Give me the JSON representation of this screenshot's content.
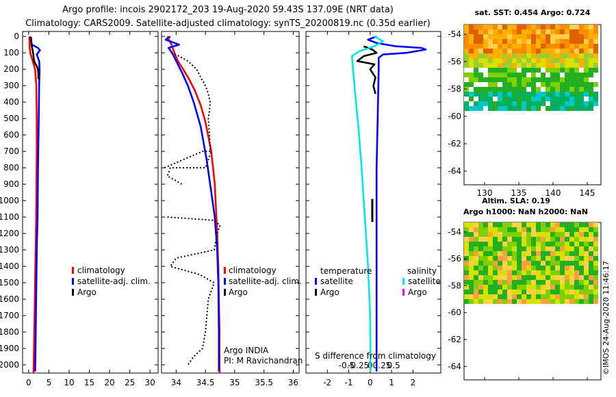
{
  "chart_data": {
    "type": "line",
    "title_line1": "Argo profile: incois 2902172_203 19-Aug-2020 59.43S 137.09E (NRT data)",
    "title_line2": "Climatology: CARS2009. Satellite-adjusted climatology: synTS_20200819.nc (0.35d earlier)",
    "depth_ticks": [
      0,
      100,
      200,
      300,
      400,
      500,
      600,
      700,
      800,
      900,
      1000,
      1100,
      1200,
      1300,
      1400,
      1500,
      1600,
      1700,
      1800,
      1900,
      2000
    ],
    "panel_temperature": {
      "xlabel": "",
      "xlim": [
        -1.5,
        32
      ],
      "xticks": [
        0,
        5,
        10,
        15,
        20,
        25,
        30
      ],
      "ylim": [
        2050,
        -30
      ],
      "series": [
        {
          "name": "climatology",
          "color": "#ff0000",
          "x": [
            0.2,
            0.2,
            0.4,
            1.0,
            1.6,
            1.9,
            2.0,
            2.0,
            1.9,
            1.8,
            1.6,
            1.4,
            1.2
          ],
          "y": [
            0,
            50,
            100,
            150,
            200,
            300,
            500,
            700,
            1000,
            1200,
            1500,
            1800,
            2050
          ]
        },
        {
          "name": "satellite-adj. clim.",
          "color": "#0000ff",
          "x": [
            0.4,
            0.8,
            2.3,
            2.8,
            2.0,
            2.6,
            2.7,
            2.6,
            2.5,
            2.3,
            2.2,
            2.0,
            1.9,
            1.8,
            1.7,
            1.6
          ],
          "y": [
            0,
            50,
            70,
            85,
            110,
            150,
            200,
            300,
            500,
            800,
            1100,
            1300,
            1500,
            1700,
            1900,
            2040
          ]
        },
        {
          "name": "Argo",
          "color": "#000000",
          "x": [
            0.6,
            0.7,
            1.1,
            1.3,
            1.5,
            2.0,
            2.3,
            2.4,
            2.4
          ],
          "y": [
            5,
            50,
            100,
            140,
            160,
            180,
            200,
            230,
            260
          ]
        }
      ],
      "legend": [
        "climatology",
        "satellite-adj. clim.",
        "Argo"
      ]
    },
    "panel_salinity": {
      "xlabel": "",
      "xlim": [
        33.75,
        36.1
      ],
      "xticks": [
        34,
        34.5,
        35,
        35.5,
        36
      ],
      "xtick_labels": [
        "34",
        "34.5",
        "35",
        "35.5",
        "36"
      ],
      "ylim": [
        2050,
        -30
      ],
      "series": [
        {
          "name": "climatology",
          "color": "#ff0000",
          "x": [
            33.85,
            33.92,
            33.97,
            34.03,
            34.12,
            34.22,
            34.32,
            34.42,
            34.5,
            34.6,
            34.66,
            34.7,
            34.72,
            34.73,
            34.74,
            34.74
          ],
          "y": [
            0,
            50,
            100,
            150,
            200,
            260,
            330,
            420,
            520,
            700,
            900,
            1200,
            1400,
            1600,
            1800,
            2050
          ]
        },
        {
          "name": "satellite-adj. clim.",
          "color": "#0000ff",
          "x": [
            33.9,
            33.82,
            34.05,
            33.87,
            33.93,
            34.0,
            34.1,
            34.2,
            34.3,
            34.42,
            34.52,
            34.6,
            34.66,
            34.7,
            34.72,
            34.73,
            34.73
          ],
          "y": [
            0,
            20,
            50,
            70,
            100,
            150,
            220,
            300,
            400,
            550,
            750,
            950,
            1100,
            1300,
            1500,
            1800,
            2040
          ]
        },
        {
          "name": "Argo",
          "color": "#000000",
          "x": [
            33.92,
            34.05,
            34.2,
            34.35,
            34.42,
            34.5,
            34.55,
            34.58,
            34.57,
            34.55,
            34.57,
            34.58
          ],
          "y": [
            100,
            120,
            150,
            200,
            250,
            300,
            350,
            400,
            450,
            500,
            600,
            700
          ]
        }
      ],
      "legend": [
        "climatology",
        "satellite-adj. clim.",
        "Argo"
      ],
      "annotation_line1": "Argo INDIA",
      "annotation_line2": "PI: M Ravichandran"
    },
    "panel_difference": {
      "xlabel": "S difference from climatology",
      "xlim": [
        -3,
        3.3
      ],
      "xticks": [
        -2,
        -1,
        0,
        1,
        2
      ],
      "xtick_labels": [
        "-2",
        "-1",
        "0",
        "1",
        "2"
      ],
      "salinity_ticks": [
        -0.5,
        -0.25,
        0,
        0.25,
        0.5
      ],
      "salinity_tick_labels": [
        "-0.5",
        "-0.25",
        "0",
        "0.25",
        "0.5"
      ],
      "ylim": [
        2050,
        -30
      ],
      "series": [
        {
          "name": "temperature satellite",
          "color": "#0000ff",
          "x": [
            0.3,
            -0.1,
            0.3,
            1.2,
            2.4,
            2.6,
            1.7,
            0.6,
            0.4,
            0.4,
            0.35,
            0.3,
            0.3,
            0.3,
            0.3,
            0.3
          ],
          "y": [
            0,
            20,
            40,
            60,
            70,
            80,
            100,
            110,
            130,
            200,
            500,
            800,
            1100,
            1400,
            1700,
            2040
          ]
        },
        {
          "name": "temperature Argo",
          "color": "#000000",
          "x": [
            -0.3,
            0.1,
            0.3,
            -0.3,
            -0.6,
            0.2,
            0.0,
            0.25,
            0.15,
            0.25
          ],
          "y": [
            60,
            80,
            100,
            120,
            150,
            170,
            200,
            250,
            300,
            350
          ]
        },
        {
          "name": "salinity satellite",
          "color": "#00e5ee",
          "x": [
            0.2,
            0.6,
            0.2,
            -0.5,
            -0.85,
            -0.8,
            -0.7,
            -0.55,
            -0.4,
            -0.25,
            -0.1,
            0.0,
            0.02
          ],
          "y": [
            0,
            30,
            60,
            90,
            120,
            200,
            350,
            550,
            800,
            1100,
            1400,
            1700,
            2040
          ]
        },
        {
          "name": "salinity Argo",
          "color": "#ff00ff",
          "x": [],
          "y": []
        }
      ],
      "argo_thick_segment": {
        "x": 0.1,
        "y": [
          990,
          1130
        ]
      },
      "legend_temperature": "temperature",
      "legend_salinity": "salinity",
      "legend_satellite": "satellite",
      "legend_argo": "Argo"
    },
    "map_sst": {
      "title": "sat. SST: 0.454 Argo: 0.724",
      "lat_ticks": [
        -54,
        -56,
        -58,
        -60,
        -62,
        -64
      ],
      "lon_ticks": [
        130,
        135,
        140,
        145
      ]
    },
    "map_sla": {
      "title_line1": "Altim. SLA: 0.19",
      "title_line2": "Argo h1000: NaN h2000: NaN",
      "lat_ticks": [
        -54,
        -56,
        -58,
        -60,
        -62,
        -64
      ]
    },
    "credit": "©IMOS 24-Aug-2020 11:46:17"
  }
}
